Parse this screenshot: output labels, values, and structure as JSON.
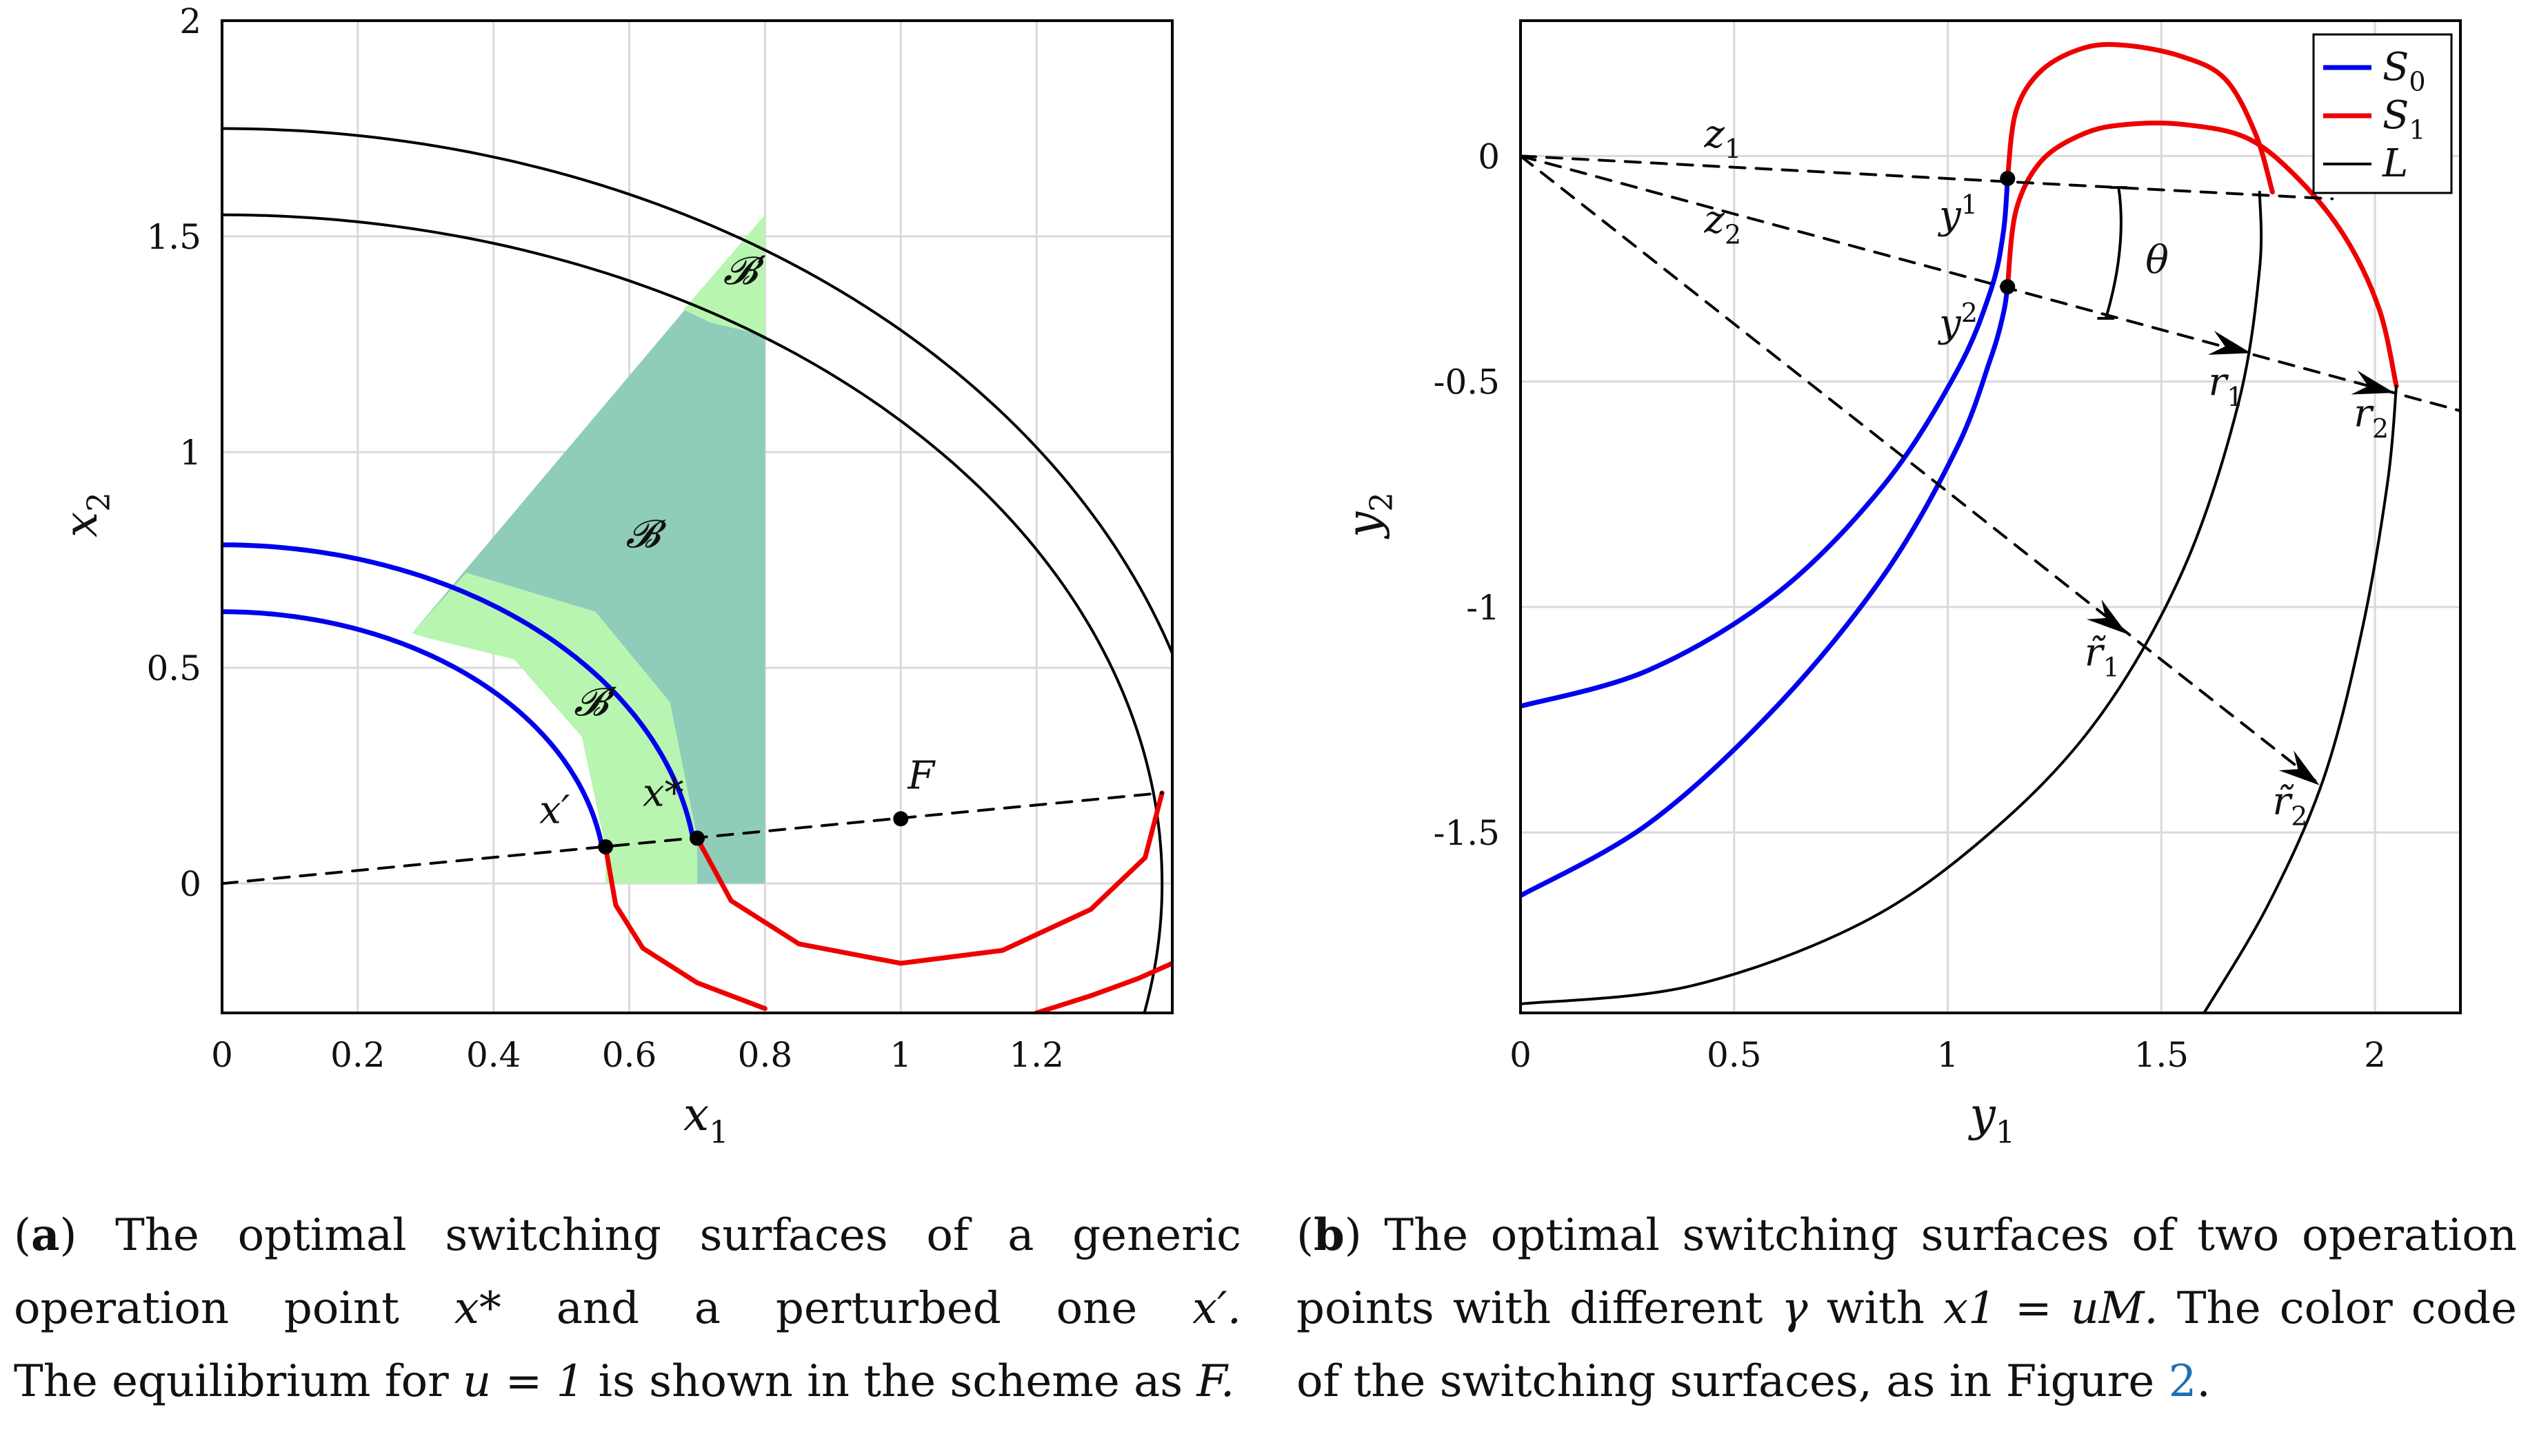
{
  "chart_data": [
    {
      "id": "a",
      "type": "line",
      "xlabel": "x1",
      "ylabel": "x2",
      "xlim": [
        0,
        1.4
      ],
      "ylim": [
        -0.3,
        2
      ],
      "xticks": [
        0,
        0.2,
        0.4,
        0.6,
        0.8,
        1,
        1.2
      ],
      "xtick_labels": [
        "0",
        "0.2",
        "0.4",
        "0.6",
        "0.8",
        "1",
        "1.2"
      ],
      "yticks": [
        0,
        0.5,
        1,
        1.5,
        2
      ],
      "ytick_labels": [
        "0",
        "0.5",
        "1",
        "1.5",
        "2"
      ],
      "grid": true,
      "colors": {
        "S0": "#0000ee",
        "S1": "#ee0000",
        "L": "#000000",
        "B": "#8fccba",
        "Bprime": "#b8f5b0"
      },
      "series": [
        {
          "name": "L outer",
          "color": "#000000",
          "center": [
            0,
            0
          ],
          "rx": 1.47,
          "ry": 1.75
        },
        {
          "name": "L inner",
          "color": "#000000",
          "center": [
            0,
            0
          ],
          "rx": 1.385,
          "ry": 1.55
        },
        {
          "name": "S0 outer",
          "color": "#0000ee",
          "center": [
            0,
            0
          ],
          "rx": 0.7,
          "ry": 0.785,
          "x_end": 0.7,
          "y_end": 0.105
        },
        {
          "name": "S0 inner",
          "color": "#0000ee",
          "center": [
            0,
            0
          ],
          "rx": 0.565,
          "ry": 0.63,
          "x_end": 0.565,
          "y_end": 0.085
        },
        {
          "name": "S1 outer",
          "color": "#ee0000",
          "points": [
            [
              0.7,
              0.105
            ],
            [
              0.75,
              -0.04
            ],
            [
              0.85,
              -0.14
            ],
            [
              1.0,
              -0.185
            ],
            [
              1.15,
              -0.155
            ],
            [
              1.28,
              -0.06
            ],
            [
              1.36,
              0.06
            ],
            [
              1.385,
              0.21
            ]
          ]
        },
        {
          "name": "S1 inner",
          "color": "#ee0000",
          "points": [
            [
              0.565,
              0.085
            ],
            [
              0.58,
              -0.05
            ],
            [
              0.62,
              -0.15
            ],
            [
              0.7,
              -0.23
            ],
            [
              0.8,
              -0.29
            ]
          ]
        },
        {
          "name": "S1 lower",
          "color": "#ee0000",
          "points": [
            [
              1.2,
              -0.3
            ],
            [
              1.28,
              -0.26
            ],
            [
              1.35,
              -0.22
            ],
            [
              1.4,
              -0.185
            ]
          ]
        },
        {
          "name": "dashed line",
          "style": "dashed",
          "points": [
            [
              0,
              0
            ],
            [
              1.385,
              0.21
            ]
          ]
        }
      ],
      "regions": [
        {
          "name": "B",
          "color": "#8fccba",
          "points": [
            [
              0.28,
              0.58
            ],
            [
              0.8,
              1.55
            ],
            [
              0.8,
              0.0
            ],
            [
              0.7,
              0.0
            ],
            [
              0.7,
              0.105
            ],
            [
              0.66,
              0.42
            ],
            [
              0.55,
              0.63
            ],
            [
              0.36,
              0.72
            ]
          ]
        },
        {
          "name": "B' upper",
          "color": "#b8f5b0",
          "points": [
            [
              0.68,
              1.33
            ],
            [
              0.8,
              1.55
            ],
            [
              0.8,
              1.27
            ],
            [
              0.72,
              1.3
            ]
          ]
        },
        {
          "name": "B' lower",
          "color": "#b8f5b0",
          "points": [
            [
              0.28,
              0.58
            ],
            [
              0.36,
              0.72
            ],
            [
              0.55,
              0.63
            ],
            [
              0.66,
              0.42
            ],
            [
              0.7,
              0.105
            ],
            [
              0.7,
              0.0
            ],
            [
              0.565,
              0.0
            ],
            [
              0.565,
              0.085
            ],
            [
              0.53,
              0.34
            ],
            [
              0.43,
              0.52
            ],
            [
              0.3,
              0.57
            ]
          ]
        }
      ],
      "points": [
        {
          "label": "x′",
          "x": 0.565,
          "y": 0.085
        },
        {
          "label": "x*",
          "x": 0.7,
          "y": 0.105
        },
        {
          "label": "F",
          "x": 1.0,
          "y": 0.15
        }
      ],
      "annotations": {
        "B": "𝓑",
        "Bprime_top": "𝓑′",
        "Bprime_bottom": "𝓑′",
        "xprime": "x′",
        "xstar": "x*",
        "F": "F"
      }
    },
    {
      "id": "b",
      "type": "line",
      "xlabel": "y1",
      "ylabel": "y2",
      "xlim": [
        0,
        2.2
      ],
      "ylim": [
        -1.9,
        0.3
      ],
      "xticks": [
        0,
        0.5,
        1,
        1.5,
        2
      ],
      "xtick_labels": [
        "0",
        "0.5",
        "1",
        "1.5",
        "2"
      ],
      "yticks": [
        0,
        -0.5,
        -1,
        -1.5
      ],
      "ytick_labels": [
        "0",
        "-0.5",
        "-1",
        "-1.5"
      ],
      "grid": true,
      "legend": {
        "position": "top-right",
        "entries": [
          {
            "label": "S0",
            "color": "#0000ee"
          },
          {
            "label": "S1",
            "color": "#ee0000"
          },
          {
            "label": "L",
            "color": "#000000"
          }
        ]
      },
      "series": [
        {
          "name": "S0 upper",
          "color": "#0000ee",
          "points": [
            [
              0,
              -1.22
            ],
            [
              0.3,
              -1.14
            ],
            [
              0.6,
              -0.97
            ],
            [
              0.85,
              -0.73
            ],
            [
              1.02,
              -0.48
            ],
            [
              1.1,
              -0.3
            ],
            [
              1.13,
              -0.17
            ],
            [
              1.14,
              -0.05
            ]
          ]
        },
        {
          "name": "S0 lower",
          "color": "#0000ee",
          "points": [
            [
              0,
              -1.64
            ],
            [
              0.3,
              -1.48
            ],
            [
              0.6,
              -1.22
            ],
            [
              0.85,
              -0.93
            ],
            [
              1.02,
              -0.65
            ],
            [
              1.1,
              -0.45
            ],
            [
              1.13,
              -0.35
            ],
            [
              1.14,
              -0.29
            ]
          ]
        },
        {
          "name": "S1 upper",
          "color": "#ee0000",
          "points": [
            [
              1.14,
              -0.05
            ],
            [
              1.16,
              0.1
            ],
            [
              1.22,
              0.19
            ],
            [
              1.32,
              0.24
            ],
            [
              1.42,
              0.245
            ],
            [
              1.55,
              0.22
            ],
            [
              1.65,
              0.17
            ],
            [
              1.72,
              0.05
            ],
            [
              1.76,
              -0.08
            ]
          ]
        },
        {
          "name": "S1 lower",
          "color": "#ee0000",
          "points": [
            [
              1.14,
              -0.29
            ],
            [
              1.16,
              -0.12
            ],
            [
              1.22,
              -0.01
            ],
            [
              1.32,
              0.05
            ],
            [
              1.42,
              0.07
            ],
            [
              1.55,
              0.07
            ],
            [
              1.7,
              0.04
            ],
            [
              1.82,
              -0.05
            ],
            [
              1.93,
              -0.18
            ],
            [
              2.01,
              -0.34
            ],
            [
              2.05,
              -0.51
            ]
          ]
        },
        {
          "name": "L upper",
          "color": "#000000",
          "points": [
            [
              0,
              -1.88
            ],
            [
              0.4,
              -1.84
            ],
            [
              0.8,
              -1.7
            ],
            [
              1.1,
              -1.5
            ],
            [
              1.35,
              -1.25
            ],
            [
              1.55,
              -0.92
            ],
            [
              1.68,
              -0.55
            ],
            [
              1.73,
              -0.25
            ],
            [
              1.73,
              -0.08
            ]
          ]
        },
        {
          "name": "L lower",
          "color": "#000000",
          "points": [
            [
              1.6,
              -1.9
            ],
            [
              1.75,
              -1.66
            ],
            [
              1.88,
              -1.38
            ],
            [
              1.97,
              -1.05
            ],
            [
              2.03,
              -0.72
            ],
            [
              2.05,
              -0.51
            ]
          ]
        },
        {
          "name": "z1 ray",
          "style": "dashed",
          "points": [
            [
              0,
              0
            ],
            [
              1.9,
              -0.095
            ]
          ]
        },
        {
          "name": "z2 ray",
          "style": "dashed",
          "points": [
            [
              0,
              0
            ],
            [
              2.2,
              -0.565
            ]
          ]
        },
        {
          "name": "r-tilde ray",
          "style": "dashed",
          "points": [
            [
              0,
              0
            ],
            [
              1.88,
              -1.4
            ]
          ]
        }
      ],
      "points": [
        {
          "label": "y1",
          "x": 1.14,
          "y": -0.05
        },
        {
          "label": "y2",
          "x": 1.14,
          "y": -0.29
        }
      ],
      "annotations": {
        "z1": "z1",
        "z2": "z2",
        "y1": "y1",
        "y2": "y2",
        "theta": "θ",
        "r1": "r1",
        "r2": "r2",
        "rt1": "r̃1",
        "rt2": "r̃2"
      }
    }
  ],
  "captions": {
    "a": {
      "tag": "a",
      "line1": "The optimal switching surfaces of a generic",
      "line2_pre": "operation point",
      "line2_var1": "x*",
      "line2_mid": "and a perturbed one",
      "line2_var2": "x′.",
      "line3_pre": "The equilibrium for",
      "line3_eq": "u = 1",
      "line3_post": "is shown in the scheme as",
      "line3_var": "F."
    },
    "b": {
      "tag": "b",
      "line1": "The optimal switching surfaces of two operation",
      "line2_pre": "points with different",
      "line2_gamma": "γ",
      "line2_with": "with",
      "line2_eq": "x1 = uM.",
      "line2_post": "The color code",
      "line3_pre": "of the switching surfaces, as in Figure",
      "line3_ref": "2",
      "line3_post": "."
    }
  }
}
